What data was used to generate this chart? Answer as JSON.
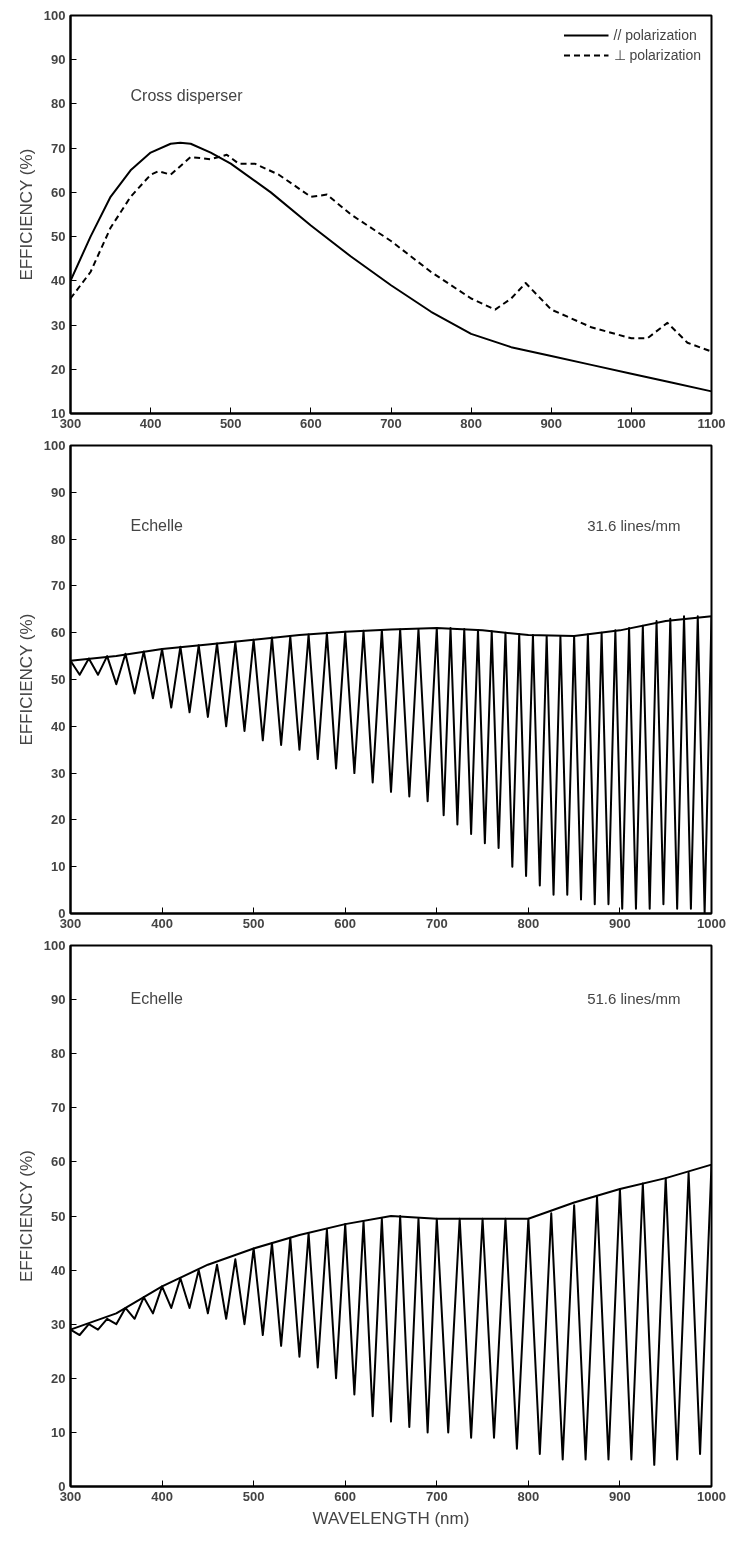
{
  "chart_data": [
    {
      "type": "line",
      "title": "Cross disperser",
      "ylabel": "EFFICIENCY (%)",
      "xlim": [
        300,
        1100
      ],
      "ylim": [
        10,
        100
      ],
      "xticks": [
        300,
        400,
        500,
        600,
        700,
        800,
        900,
        1000,
        1100
      ],
      "yticks": [
        10,
        20,
        30,
        40,
        50,
        60,
        70,
        80,
        90,
        100
      ],
      "grid": false,
      "legend": "top right",
      "series": [
        {
          "name": "// polarization",
          "color": "#000000",
          "line_style": "solid",
          "x": [
            300,
            325,
            350,
            375,
            400,
            425,
            437,
            450,
            475,
            500,
            550,
            600,
            650,
            700,
            750,
            800,
            850,
            900,
            950,
            1000,
            1050,
            1100
          ],
          "values": [
            40,
            50,
            59,
            65,
            69,
            71,
            71.2,
            71,
            69,
            66.5,
            60,
            52.5,
            45.5,
            39,
            33,
            28,
            25,
            23,
            21,
            19,
            17,
            15
          ]
        },
        {
          "name": "⊥ polarization",
          "color": "#000000",
          "line_style": "dashed",
          "x": [
            300,
            325,
            350,
            375,
            400,
            410,
            425,
            450,
            475,
            495,
            510,
            530,
            560,
            600,
            620,
            650,
            700,
            750,
            800,
            830,
            850,
            868,
            900,
            950,
            1000,
            1020,
            1045,
            1070,
            1100
          ],
          "values": [
            36,
            42,
            52,
            59,
            64,
            64.8,
            64,
            68,
            67.5,
            68.5,
            66.5,
            66.5,
            64,
            59,
            59.5,
            55,
            49,
            42,
            36,
            33.5,
            36,
            39.5,
            33.5,
            29.5,
            27,
            27,
            30.5,
            26,
            24
          ]
        }
      ]
    },
    {
      "type": "line",
      "title": "Echelle",
      "annotations": [
        "31.6 lines/mm"
      ],
      "ylabel": "EFFICIENCY (%)",
      "xlim": [
        300,
        1000
      ],
      "ylim": [
        0,
        100
      ],
      "xticks": [
        300,
        400,
        500,
        600,
        700,
        800,
        900,
        1000
      ],
      "yticks": [
        0,
        10,
        20,
        30,
        40,
        50,
        60,
        70,
        80,
        90,
        100
      ],
      "grid": false,
      "series": [
        {
          "color": "#000000",
          "x": [
            300,
            350,
            400,
            450,
            500,
            550,
            600,
            650,
            700,
            750,
            800,
            850,
            900,
            950,
            1000
          ],
          "values": [
            54,
            55,
            56.5,
            57.5,
            58.5,
            59.5,
            60.2,
            60.7,
            61,
            60.5,
            59.5,
            59.3,
            60.5,
            62.5,
            63.5
          ]
        },
        {
          "color": "#000000",
          "x": [
            300,
            310,
            320,
            330,
            340,
            350,
            360,
            370,
            380,
            390,
            400,
            410,
            420,
            430,
            440,
            450,
            460,
            470,
            480,
            490,
            500,
            510,
            520,
            530,
            540,
            550,
            560,
            570,
            580,
            590,
            600,
            610,
            620,
            630,
            640,
            650,
            660,
            670,
            680,
            690,
            700,
            707.5,
            715,
            722.5,
            730,
            737.5,
            745,
            752.5,
            760,
            767.5,
            775,
            782.5,
            790,
            797.5,
            805,
            812.5,
            820,
            827.5,
            835,
            842.5,
            850,
            857.5,
            865,
            872.5,
            880,
            887.5,
            895,
            902.5,
            910,
            917.5,
            925,
            932.5,
            940,
            947.5,
            955,
            962.5,
            970,
            977.5,
            985,
            992.5,
            1000
          ],
          "values": [
            54,
            51,
            54.5,
            51,
            55,
            49,
            55.5,
            47,
            56,
            46,
            56.5,
            44,
            57,
            43,
            57.3,
            42,
            57.7,
            40,
            58,
            39,
            58.5,
            37,
            59,
            36,
            59.2,
            35,
            59.6,
            33,
            60,
            31,
            60.2,
            30,
            60.4,
            28,
            60.6,
            26,
            60.7,
            25,
            60.8,
            24,
            61,
            21,
            61,
            19,
            60.8,
            17,
            60.6,
            15,
            60.3,
            14,
            60,
            10,
            59.7,
            8,
            59.5,
            6,
            59.3,
            4,
            59.2,
            4,
            59.3,
            3,
            59.6,
            2,
            60,
            2,
            60.5,
            1,
            61,
            1,
            61.5,
            1,
            62.5,
            2,
            63,
            1,
            63.5,
            1,
            63.5,
            0,
            63.5
          ]
        }
      ]
    },
    {
      "type": "line",
      "title": "Echelle",
      "annotations": [
        "51.6 lines/mm"
      ],
      "xlabel": "WAVELENGTH (nm)",
      "ylabel": "EFFICIENCY (%)",
      "xlim": [
        300,
        1000
      ],
      "ylim": [
        0,
        100
      ],
      "xticks": [
        300,
        400,
        500,
        600,
        700,
        800,
        900,
        1000
      ],
      "yticks": [
        0,
        10,
        20,
        30,
        40,
        50,
        60,
        70,
        80,
        90,
        100
      ],
      "grid": false,
      "series": [
        {
          "color": "#000000",
          "x": [
            300,
            350,
            400,
            450,
            500,
            550,
            600,
            650,
            700,
            750,
            800,
            850,
            900,
            950,
            1000
          ],
          "values": [
            29,
            32,
            37,
            41,
            44,
            46.5,
            48.5,
            50,
            49.5,
            49.5,
            49.5,
            52.5,
            55,
            57,
            59.5
          ]
        },
        {
          "color": "#000000",
          "x": [
            300,
            310,
            320,
            330,
            340,
            350,
            360,
            370,
            380,
            390,
            400,
            410,
            420,
            430,
            440,
            450,
            460,
            470,
            480,
            490,
            500,
            510,
            520,
            530,
            540,
            550,
            560,
            570,
            580,
            590,
            600,
            610,
            620,
            630,
            640,
            650,
            660,
            670,
            680,
            690,
            700,
            712.5,
            725,
            737.5,
            750,
            762.5,
            775,
            787.5,
            800,
            812.5,
            825,
            837.5,
            850,
            862.5,
            875,
            887.5,
            900,
            912.5,
            925,
            937.5,
            950,
            962.5,
            975,
            987.5,
            1000
          ],
          "values": [
            29,
            28,
            30,
            29,
            31,
            30,
            33,
            31,
            35,
            32,
            37,
            33,
            38.5,
            33,
            40,
            32,
            41,
            31,
            42,
            30,
            44,
            28,
            45,
            26,
            46,
            24,
            46.8,
            22,
            47.5,
            20,
            48.5,
            17,
            49,
            13,
            49.5,
            12,
            50,
            11,
            49.5,
            10,
            49.5,
            10,
            49.5,
            9,
            49.5,
            9,
            49.5,
            7,
            49.5,
            6,
            50.5,
            5,
            52,
            5,
            53.5,
            5,
            55,
            5,
            56,
            4,
            57,
            5,
            58,
            6,
            59.5
          ]
        }
      ]
    }
  ]
}
